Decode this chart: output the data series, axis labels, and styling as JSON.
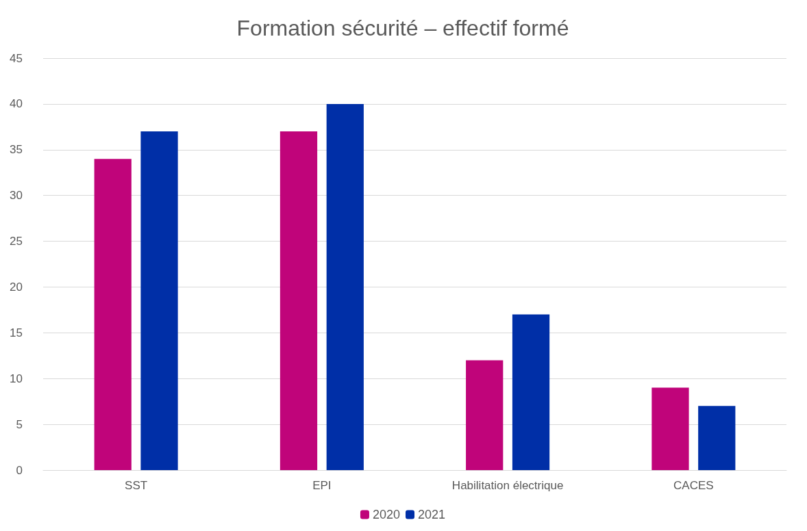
{
  "chart_data": {
    "type": "bar",
    "title": "Formation sécurité – effectif formé",
    "categories": [
      "SST",
      "EPI",
      "Habilitation électrique",
      "CACES"
    ],
    "series": [
      {
        "name": "2020",
        "color": "#c0047a",
        "values": [
          34,
          37,
          12,
          9
        ]
      },
      {
        "name": "2021",
        "color": "#002fa7",
        "values": [
          37,
          40,
          17,
          7
        ]
      }
    ],
    "ylim": [
      0,
      45
    ],
    "yticks": [
      0,
      5,
      10,
      15,
      20,
      25,
      30,
      35,
      40,
      45
    ],
    "grid": "y",
    "legend": "bottom"
  }
}
